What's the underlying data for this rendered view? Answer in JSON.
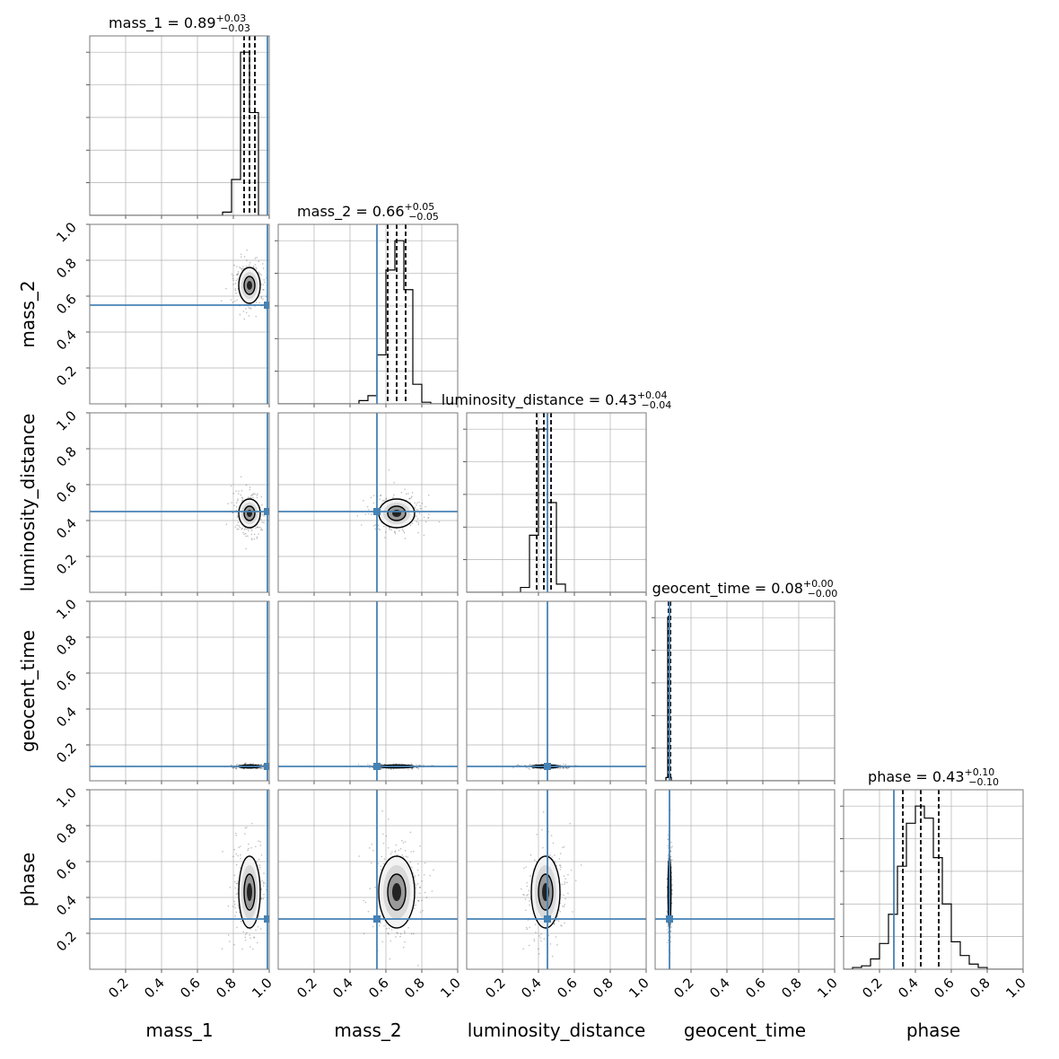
{
  "chart_data": {
    "type": "corner",
    "parameters": [
      "mass_1",
      "mass_2",
      "luminosity_distance",
      "geocent_time",
      "phase"
    ],
    "axis_labels": [
      "mass_1",
      "mass_2",
      "luminosity_distance",
      "geocent_time",
      "phase"
    ],
    "range": [
      0,
      1
    ],
    "ticks": [
      "0.2",
      "0.4",
      "0.6",
      "0.8",
      "1.0"
    ],
    "grid": true,
    "colors": {
      "truth": "#4682b4",
      "hist": "#000000",
      "grid": "#b0b0b0",
      "frame": "#7a7a7a"
    },
    "truths": [
      0.99,
      0.55,
      0.45,
      0.08,
      0.28
    ],
    "diagonal": [
      {
        "name": "mass_1",
        "title_prefix": "mass_1 = 0.89",
        "sup": "+0.03",
        "sub": "−0.03",
        "median": 0.89,
        "q_low": 0.86,
        "q_high": 0.92,
        "bins": [
          0.74,
          0.79,
          0.84,
          0.89,
          0.94,
          0.99
        ],
        "counts": [
          0.02,
          0.22,
          1.0,
          0.63,
          0.0
        ]
      },
      {
        "name": "mass_2",
        "title_prefix": "mass_2 = 0.66",
        "sup": "+0.05",
        "sub": "−0.05",
        "median": 0.66,
        "q_low": 0.61,
        "q_high": 0.71,
        "bins": [
          0.45,
          0.5,
          0.55,
          0.6,
          0.65,
          0.7,
          0.75,
          0.8,
          0.85
        ],
        "counts": [
          0.02,
          0.05,
          0.3,
          0.82,
          1.0,
          0.7,
          0.12,
          0.01
        ]
      },
      {
        "name": "luminosity_distance",
        "title_prefix": "luminosity_distance = 0.43",
        "sup": "+0.04",
        "sub": "−0.04",
        "median": 0.43,
        "q_low": 0.39,
        "q_high": 0.47,
        "bins": [
          0.3,
          0.35,
          0.4,
          0.45,
          0.5,
          0.55
        ],
        "counts": [
          0.03,
          0.35,
          1.0,
          0.55,
          0.05
        ]
      },
      {
        "name": "geocent_time",
        "title_prefix": "geocent_time = 0.08",
        "sup": "+0.00",
        "sub": "−0.00",
        "median": 0.08,
        "q_low": 0.075,
        "q_high": 0.085,
        "bins": [
          0.05,
          0.06,
          0.07,
          0.08,
          0.09,
          0.1
        ],
        "counts": [
          0.0,
          0.02,
          1.0,
          0.02,
          0.0
        ]
      },
      {
        "name": "phase",
        "title_prefix": "phase = 0.43",
        "sup": "+0.10",
        "sub": "−0.10",
        "median": 0.43,
        "q_low": 0.33,
        "q_high": 0.53,
        "bins": [
          0.05,
          0.1,
          0.15,
          0.2,
          0.25,
          0.3,
          0.35,
          0.4,
          0.45,
          0.5,
          0.55,
          0.6,
          0.65,
          0.7,
          0.75,
          0.8,
          0.85,
          0.9,
          0.95,
          1.0
        ],
        "counts": [
          0.01,
          0.02,
          0.06,
          0.15,
          0.32,
          0.6,
          0.85,
          0.95,
          0.88,
          0.65,
          0.38,
          0.16,
          0.08,
          0.03,
          0.01,
          0.0,
          0.0,
          0.0,
          0.0
        ]
      }
    ],
    "distributions": [
      {
        "name": "mass_1",
        "mean": 0.89,
        "sd": 0.03
      },
      {
        "name": "mass_2",
        "mean": 0.66,
        "sd": 0.05
      },
      {
        "name": "luminosity_distance",
        "mean": 0.44,
        "sd": 0.04
      },
      {
        "name": "geocent_time",
        "mean": 0.08,
        "sd": 0.004
      },
      {
        "name": "phase",
        "mean": 0.43,
        "sd": 0.1
      }
    ]
  }
}
